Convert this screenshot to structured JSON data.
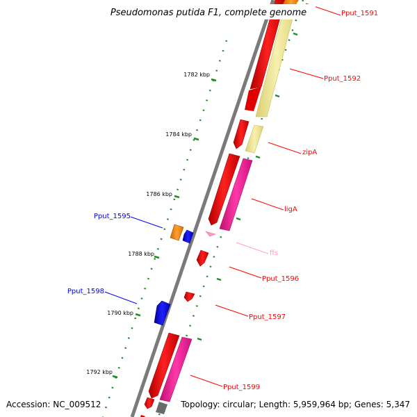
{
  "header": {
    "title": "Pseudomonas putida F1, complete genome"
  },
  "footer": {
    "accession": "Accession: NC_009512",
    "summary": "Topology: circular; Length: 5,959,964 bp; Genes: 5,347"
  },
  "scale": {
    "tick_labels": [
      "1782 kbp",
      "1784 kbp",
      "1786 kbp",
      "1788 kbp",
      "1790 kbp",
      "1792 kbp"
    ]
  },
  "features": [
    {
      "name": "Pput_1591",
      "strand": "outer",
      "color": "#ff0000"
    },
    {
      "name": "Pput_1592",
      "strand": "outer",
      "color": "#ff0000"
    },
    {
      "name": "zipA",
      "strand": "outer",
      "color": "#ff0000"
    },
    {
      "name": "ligA",
      "strand": "outer",
      "color": "#ff0000"
    },
    {
      "name": "ffs",
      "strand": "outer",
      "color": "#ff9ac8"
    },
    {
      "name": "Pput_1596",
      "strand": "outer",
      "color": "#ff0000"
    },
    {
      "name": "Pput_1597",
      "strand": "outer",
      "color": "#ff0000"
    },
    {
      "name": "Pput_1599",
      "strand": "outer",
      "color": "#ff0000"
    },
    {
      "name": "Pput_1595",
      "strand": "inner",
      "color": "#0000ff"
    },
    {
      "name": "Pput_1598",
      "strand": "inner",
      "color": "#0000ff"
    }
  ],
  "colors": {
    "cds_forward": "#ff0000",
    "cds_reverse": "#0000ff",
    "gene": "#ff1493",
    "gene_pale": "#f0e68c",
    "rna": "#ff9ac8",
    "backbone": "#808080",
    "ticks": "#228b22"
  }
}
